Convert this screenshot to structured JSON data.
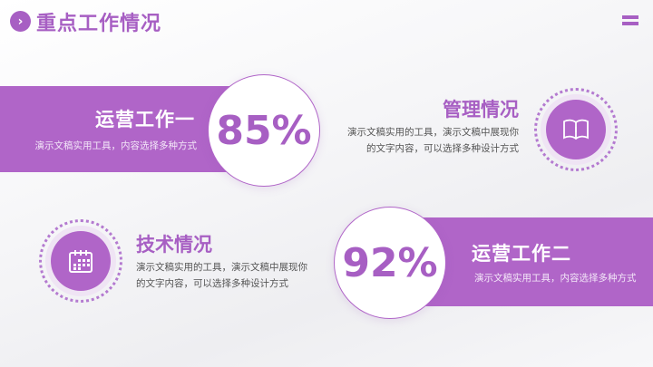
{
  "header": {
    "title": "重点工作情况",
    "title_icon": "chevron-right-circle-icon",
    "menu_icon": "menu-icon"
  },
  "colors": {
    "accent": "#b065c8",
    "title": "#a75fc3"
  },
  "cards": [
    {
      "value": "85%",
      "title": "运营工作一",
      "desc": "演示文稿实用工具，内容选择多种方式"
    },
    {
      "title": "管理情况",
      "desc_line1": "演示文稿实用的工具，演示文稿中展现你",
      "desc_line2": "的文字内容，可以选择多种设计方式",
      "icon": "book-icon"
    },
    {
      "title": "技术情况",
      "desc_line1": "演示文稿实用的工具，演示文稿中展现你",
      "desc_line2": "的文字内容，可以选择多种设计方式",
      "icon": "calendar-icon"
    },
    {
      "value": "92%",
      "title": "运营工作二",
      "desc": "演示文稿实用工具，内容选择多种方式"
    }
  ]
}
